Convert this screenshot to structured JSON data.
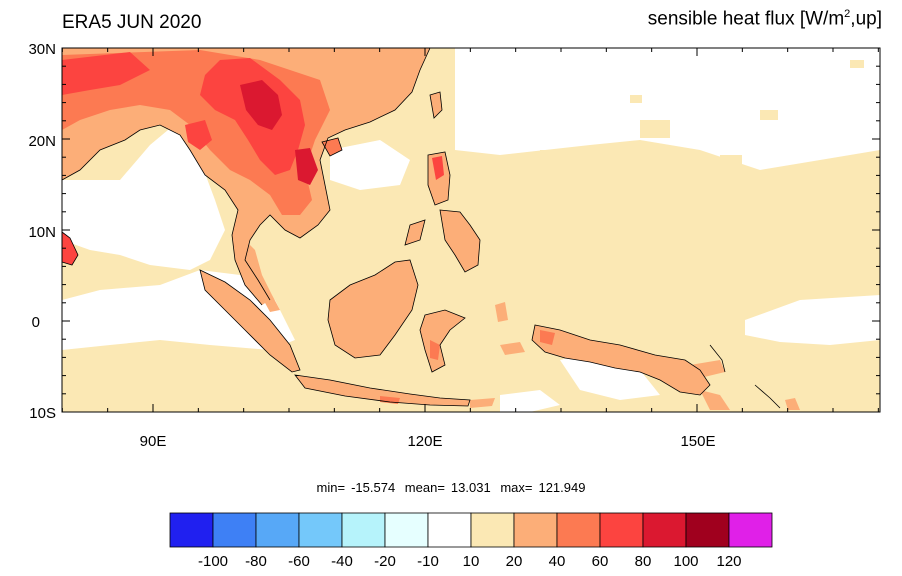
{
  "title_left": "ERA5 JUN 2020",
  "title_right": {
    "prefix": "sensible heat flux [W/m",
    "sup": "2",
    "suffix": ",up]"
  },
  "lat_labels": [
    "30N",
    "20N",
    "10N",
    "0",
    "10S"
  ],
  "lon_labels": [
    "90E",
    "120E",
    "150E"
  ],
  "stats": {
    "min_label": "min=",
    "min_value": "-15.574",
    "mean_label": "mean=",
    "mean_value": "13.031",
    "max_label": "max=",
    "max_value": "121.949"
  },
  "colorbar": {
    "colors": [
      "#2020f0",
      "#3e80f5",
      "#57a8f7",
      "#74c8fa",
      "#b6f3fb",
      "#e6ffff",
      "#ffffff",
      "#fbe8b4",
      "#fcae78",
      "#fc7a52",
      "#fc4440",
      "#db1830",
      "#a0001e",
      "#e020e8"
    ],
    "labels": [
      "-100",
      "-80",
      "-60",
      "-40",
      "-20",
      "-10",
      "10",
      "20",
      "40",
      "60",
      "80",
      "100",
      "120"
    ]
  },
  "map_colors": {
    "ocean_low": "#fbe8b4",
    "land_20_40": "#fcae78",
    "land_40_60": "#fc7a52",
    "land_60_80": "#fc4440",
    "land_80_100": "#db1830"
  }
}
